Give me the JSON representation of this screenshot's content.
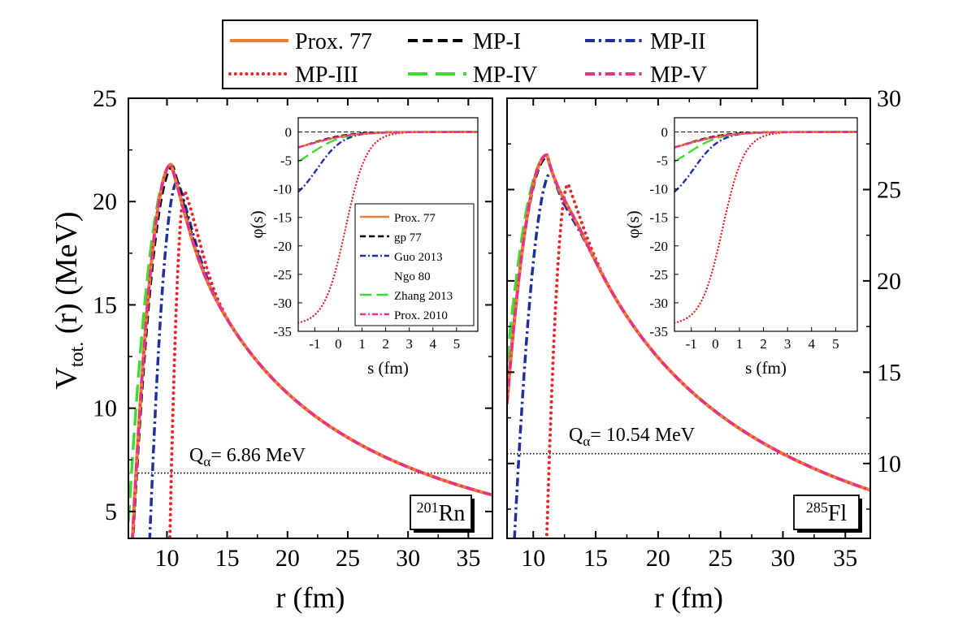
{
  "legend": [
    {
      "label": "Prox. 77",
      "color": "#ed7d31",
      "style": "solid"
    },
    {
      "label": "MP-I",
      "color": "#000000",
      "style": "dash"
    },
    {
      "label": "MP-II",
      "color": "#1f2fa0",
      "style": "dashdot"
    },
    {
      "label": "MP-III",
      "color": "#e8252a",
      "style": "dot"
    },
    {
      "label": "MP-IV",
      "color": "#3ddc2e",
      "style": "longdash"
    },
    {
      "label": "MP-V",
      "color": "#e8308a",
      "style": "dashdot"
    }
  ],
  "inset_legend": [
    {
      "label": "Prox. 77",
      "color": "#ed7d31",
      "style": "solid"
    },
    {
      "label": "gp 77",
      "color": "#000000",
      "style": "dash"
    },
    {
      "label": "Guo 2013",
      "color": "#1f2fa0",
      "style": "dashdot"
    },
    {
      "label": "Ngo 80",
      "color": "#e8252a",
      "style": "dot"
    },
    {
      "label": "Zhang 2013",
      "color": "#3ddc2e",
      "style": "longdash"
    },
    {
      "label": "Prox. 2010",
      "color": "#e8308a",
      "style": "dashdot"
    }
  ],
  "chart_data": [
    {
      "type": "line",
      "panel": "left",
      "nucleus_mass": "201",
      "nucleus_symbol": "Rn",
      "q_prefix": "Q",
      "q_sub": "α",
      "q_value": "= 6.86 MeV",
      "Q": 6.86,
      "xlabel": "r (fm)",
      "ylabel_main": "V",
      "ylabel_sub": "tot.",
      "ylabel_rest": "(r) (MeV)",
      "xlim": [
        6.8,
        37
      ],
      "ylim": [
        3.7,
        25
      ],
      "xticks": [
        "10",
        "15",
        "20",
        "25",
        "30",
        "35"
      ],
      "yticks": [
        "5",
        "10",
        "15",
        "20",
        "25"
      ],
      "coulomb_k": 214.5,
      "series": [
        {
          "name": "Prox. 77",
          "peak_r": 10.35,
          "peak_v": 21.8,
          "inner_width": 1.35
        },
        {
          "name": "MP-I",
          "peak_r": 10.5,
          "peak_v": 21.7,
          "inner_width": 1.4
        },
        {
          "name": "MP-II",
          "peak_r": 10.9,
          "peak_v": 21.0,
          "inner_width": 1.0
        },
        {
          "name": "MP-III",
          "peak_r": 11.5,
          "peak_v": 20.5,
          "inner_width": 0.55
        },
        {
          "name": "MP-IV",
          "peak_r": 10.4,
          "peak_v": 21.75,
          "inner_width": 1.55
        },
        {
          "name": "MP-V",
          "peak_r": 10.35,
          "peak_v": 21.8,
          "inner_width": 1.35
        }
      ],
      "inset": {
        "xlabel": "s (fm)",
        "ylabel": "φ(s)",
        "xlim": [
          -1.7,
          5.9
        ],
        "ylim": [
          -35,
          2.5
        ],
        "xticks": [
          "-1",
          "0",
          "1",
          "2",
          "3",
          "4",
          "5"
        ],
        "yticks": [
          "0",
          "-5",
          "-10",
          "-15",
          "-20",
          "-25",
          "-30",
          "-35"
        ],
        "series": [
          {
            "name": "Prox. 77",
            "start": -2.7,
            "decay": 0.9
          },
          {
            "name": "gp 77",
            "start": -2.7,
            "decay": 0.8
          },
          {
            "name": "Guo 2013",
            "start": -10.5,
            "decay": 0.55
          },
          {
            "name": "Ngo 80",
            "start": -33.5,
            "decay": 0.45
          },
          {
            "name": "Zhang 2013",
            "start": -5.2,
            "decay": 0.7
          },
          {
            "name": "Prox. 2010",
            "start": -2.7,
            "decay": 0.9
          }
        ]
      }
    },
    {
      "type": "line",
      "panel": "right",
      "nucleus_mass": "285",
      "nucleus_symbol": "Fl",
      "q_prefix": "Q",
      "q_sub": "α",
      "q_value": "= 10.54 MeV",
      "Q": 10.54,
      "xlabel": "r (fm)",
      "xlim": [
        7.9,
        37
      ],
      "ylim": [
        5.9,
        30
      ],
      "xticks": [
        "10",
        "15",
        "20",
        "25",
        "30",
        "35"
      ],
      "yticks": [
        "10",
        "15",
        "20",
        "25",
        "30"
      ],
      "coulomb_k": 316,
      "series": [
        {
          "name": "Prox. 77",
          "peak_r": 11.1,
          "peak_v": 26.9,
          "inner_width": 1.55
        },
        {
          "name": "MP-I",
          "peak_r": 11.15,
          "peak_v": 26.8,
          "inner_width": 1.6
        },
        {
          "name": "MP-II",
          "peak_r": 11.5,
          "peak_v": 26.0,
          "inner_width": 1.2
        },
        {
          "name": "MP-III",
          "peak_r": 12.8,
          "peak_v": 25.3,
          "inner_width": 0.7
        },
        {
          "name": "MP-IV",
          "peak_r": 11.1,
          "peak_v": 26.85,
          "inner_width": 1.7
        },
        {
          "name": "MP-V",
          "peak_r": 11.1,
          "peak_v": 26.9,
          "inner_width": 1.55
        }
      ],
      "inset": {
        "xlabel": "s (fm)",
        "ylabel": "φ(s)",
        "xlim": [
          -1.7,
          5.9
        ],
        "ylim": [
          -35,
          2.5
        ],
        "xticks": [
          "-1",
          "0",
          "1",
          "2",
          "3",
          "4",
          "5"
        ],
        "yticks": [
          "0",
          "-5",
          "-10",
          "-15",
          "-20",
          "-25",
          "-30",
          "-35"
        ],
        "series": [
          {
            "name": "Prox. 77",
            "start": -2.7,
            "decay": 0.9
          },
          {
            "name": "gp 77",
            "start": -2.7,
            "decay": 0.8
          },
          {
            "name": "Guo 2013",
            "start": -10.5,
            "decay": 0.55
          },
          {
            "name": "Ngo 80",
            "start": -33.5,
            "decay": 0.45
          },
          {
            "name": "Zhang 2013",
            "start": -5.2,
            "decay": 0.7
          },
          {
            "name": "Prox. 2010",
            "start": -2.7,
            "decay": 0.9
          }
        ]
      }
    }
  ]
}
